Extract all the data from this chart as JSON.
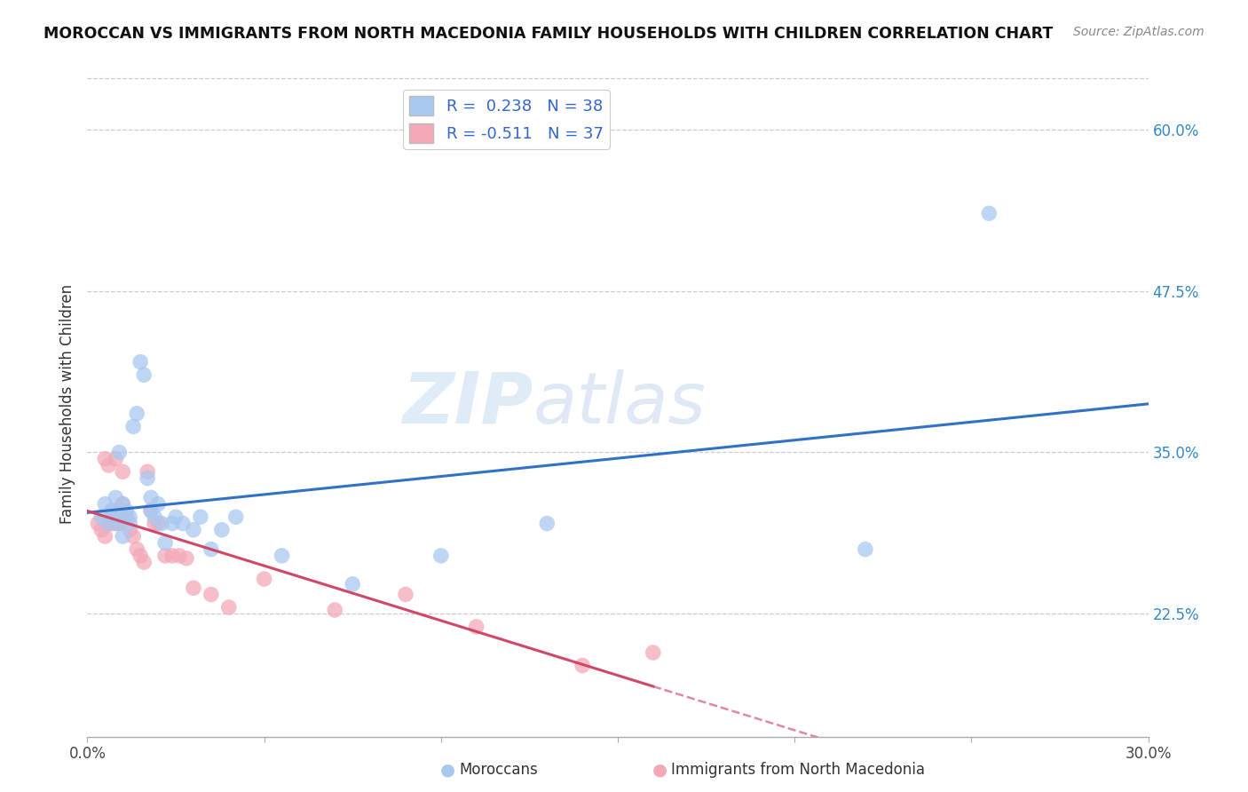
{
  "title": "MOROCCAN VS IMMIGRANTS FROM NORTH MACEDONIA FAMILY HOUSEHOLDS WITH CHILDREN CORRELATION CHART",
  "source": "Source: ZipAtlas.com",
  "xlabel_moroccan": "Moroccans",
  "xlabel_macedonia": "Immigrants from North Macedonia",
  "ylabel": "Family Households with Children",
  "xmin": 0.0,
  "xmax": 0.3,
  "ymin": 0.13,
  "ymax": 0.645,
  "yticks": [
    0.225,
    0.35,
    0.475,
    0.6
  ],
  "ytick_labels": [
    "22.5%",
    "35.0%",
    "47.5%",
    "60.0%"
  ],
  "xticks": [
    0.0,
    0.05,
    0.1,
    0.15,
    0.2,
    0.25,
    0.3
  ],
  "xtick_labels": [
    "0.0%",
    "",
    "",
    "",
    "",
    "",
    "30.0%"
  ],
  "blue_R": 0.238,
  "blue_N": 38,
  "pink_R": -0.511,
  "pink_N": 37,
  "blue_color": "#a8c8f0",
  "pink_color": "#f4a8b8",
  "blue_line_color": "#3070c8",
  "pink_line_color": "#d04868",
  "watermark_zip": "ZIP",
  "watermark_atlas": "atlas",
  "blue_scatter_x": [
    0.004,
    0.005,
    0.006,
    0.007,
    0.008,
    0.008,
    0.009,
    0.009,
    0.01,
    0.01,
    0.011,
    0.012,
    0.012,
    0.013,
    0.014,
    0.015,
    0.016,
    0.017,
    0.018,
    0.018,
    0.019,
    0.02,
    0.021,
    0.022,
    0.024,
    0.025,
    0.027,
    0.03,
    0.032,
    0.035,
    0.038,
    0.042,
    0.055,
    0.075,
    0.1,
    0.13,
    0.22,
    0.255
  ],
  "blue_scatter_y": [
    0.3,
    0.31,
    0.295,
    0.305,
    0.3,
    0.315,
    0.295,
    0.35,
    0.285,
    0.31,
    0.305,
    0.3,
    0.295,
    0.37,
    0.38,
    0.42,
    0.41,
    0.33,
    0.315,
    0.305,
    0.3,
    0.31,
    0.295,
    0.28,
    0.295,
    0.3,
    0.295,
    0.29,
    0.3,
    0.275,
    0.29,
    0.3,
    0.27,
    0.248,
    0.27,
    0.295,
    0.275,
    0.535
  ],
  "pink_scatter_x": [
    0.003,
    0.004,
    0.005,
    0.005,
    0.006,
    0.006,
    0.007,
    0.007,
    0.008,
    0.008,
    0.009,
    0.009,
    0.01,
    0.01,
    0.011,
    0.012,
    0.013,
    0.014,
    0.015,
    0.016,
    0.017,
    0.018,
    0.019,
    0.02,
    0.022,
    0.024,
    0.026,
    0.028,
    0.03,
    0.035,
    0.04,
    0.05,
    0.07,
    0.09,
    0.11,
    0.14,
    0.16
  ],
  "pink_scatter_y": [
    0.295,
    0.29,
    0.285,
    0.345,
    0.295,
    0.34,
    0.295,
    0.305,
    0.295,
    0.345,
    0.305,
    0.295,
    0.31,
    0.335,
    0.3,
    0.29,
    0.285,
    0.275,
    0.27,
    0.265,
    0.335,
    0.305,
    0.295,
    0.295,
    0.27,
    0.27,
    0.27,
    0.268,
    0.245,
    0.24,
    0.23,
    0.252,
    0.228,
    0.24,
    0.215,
    0.185,
    0.195
  ]
}
